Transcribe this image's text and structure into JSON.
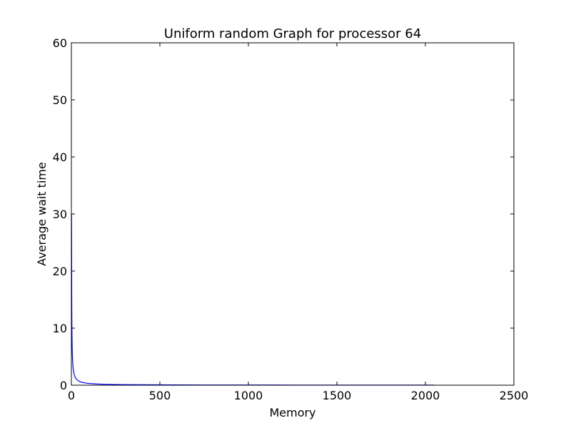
{
  "chart_data": {
    "type": "line",
    "title": "Uniform random Graph for processor 64",
    "xlabel": "Memory",
    "ylabel": "Average wait time",
    "xlim": [
      0,
      2500
    ],
    "ylim": [
      0,
      60
    ],
    "xticks": [
      0,
      500,
      1000,
      1500,
      2000,
      2500
    ],
    "yticks": [
      0,
      10,
      20,
      30,
      40,
      50,
      60
    ],
    "grid": false,
    "series": [
      {
        "color": "#0000ff",
        "x": [
          1,
          2,
          3,
          4,
          5,
          6,
          8,
          10,
          12,
          15,
          20,
          25,
          30,
          40,
          50,
          60,
          80,
          100,
          150,
          200,
          300,
          400,
          500,
          750,
          1000,
          1250,
          1500,
          1750,
          2000,
          2048
        ],
        "y": [
          30.0,
          15.0,
          10.0,
          7.5,
          6.0,
          5.0,
          3.75,
          3.0,
          2.5,
          2.0,
          1.5,
          1.2,
          1.0,
          0.75,
          0.6,
          0.5,
          0.38,
          0.3,
          0.2,
          0.15,
          0.1,
          0.075,
          0.06,
          0.04,
          0.03,
          0.024,
          0.02,
          0.017,
          0.015,
          0.015
        ]
      }
    ]
  }
}
